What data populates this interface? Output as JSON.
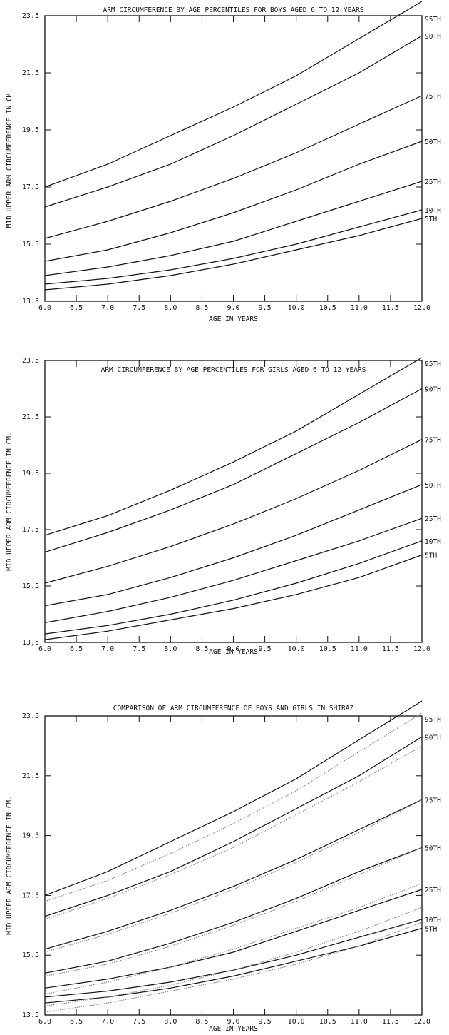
{
  "chart_data": [
    {
      "type": "line",
      "title": "ARM CIRCUMFERENCE BY AGE PERCENTILES FOR BOYS AGED 6 TO 12 YEARS",
      "xlabel": "AGE IN YEARS",
      "ylabel": "MID UPPER ARM CIRCUMFERENCE IN CM.",
      "xlim": [
        6.0,
        12.0
      ],
      "ylim": [
        13.5,
        23.5
      ],
      "x_ticks": [
        "6.0",
        "6.5",
        "7.0",
        "7.5",
        "8.0",
        "8.5",
        "9.0",
        "9.5",
        "10.0",
        "10.5",
        "11.0",
        "11.5",
        "12.0"
      ],
      "y_ticks": [
        "13.5",
        "15.5",
        "17.5",
        "19.5",
        "21.5",
        "23.5"
      ],
      "x": [
        6,
        7,
        8,
        9,
        10,
        11,
        12
      ],
      "series": [
        {
          "name": "95TH",
          "values": [
            17.5,
            18.3,
            19.3,
            20.3,
            21.4,
            22.7,
            24.0
          ]
        },
        {
          "name": "90TH",
          "values": [
            16.8,
            17.5,
            18.3,
            19.3,
            20.4,
            21.5,
            22.8
          ]
        },
        {
          "name": "75TH",
          "values": [
            15.7,
            16.3,
            17.0,
            17.8,
            18.7,
            19.7,
            20.7
          ]
        },
        {
          "name": "50TH",
          "values": [
            14.9,
            15.3,
            15.9,
            16.6,
            17.4,
            18.3,
            19.1
          ]
        },
        {
          "name": "25TH",
          "values": [
            14.4,
            14.7,
            15.1,
            15.6,
            16.3,
            17.0,
            17.7
          ]
        },
        {
          "name": "10TH",
          "values": [
            14.1,
            14.3,
            14.6,
            15.0,
            15.5,
            16.1,
            16.7
          ]
        },
        {
          "name": "5TH",
          "values": [
            13.9,
            14.1,
            14.4,
            14.8,
            15.3,
            15.8,
            16.4
          ]
        }
      ]
    },
    {
      "type": "line",
      "title": "ARM CIRCUMFERENCE BY AGE PERCENTILES FOR GIRLS AGED 6 TO 12 YEARS",
      "xlabel": "AGE IN YEARS",
      "ylabel": "MID UPPER ARM CIRCUMFERENCE IN CM.",
      "xlim": [
        6.0,
        12.0
      ],
      "ylim": [
        13.5,
        23.5
      ],
      "x_ticks": [
        "6.0",
        "6.5",
        "7.0",
        "7.5",
        "8.0",
        "8.5",
        "9.0",
        "9.5",
        "10.0",
        "10.5",
        "11.0",
        "11.5",
        "12.0"
      ],
      "y_ticks": [
        "13,5",
        "15.5",
        "17.5",
        "19.5",
        "21.5",
        "23.5"
      ],
      "x": [
        6,
        7,
        8,
        9,
        10,
        11,
        12
      ],
      "series": [
        {
          "name": "95TH",
          "values": [
            17.3,
            18.0,
            18.9,
            19.9,
            21.0,
            22.3,
            23.6
          ]
        },
        {
          "name": "90TH",
          "values": [
            16.7,
            17.4,
            18.2,
            19.1,
            20.2,
            21.3,
            22.5
          ]
        },
        {
          "name": "75TH",
          "values": [
            15.6,
            16.2,
            16.9,
            17.7,
            18.6,
            19.6,
            20.7
          ]
        },
        {
          "name": "50TH",
          "values": [
            14.8,
            15.2,
            15.8,
            16.5,
            17.3,
            18.2,
            19.1
          ]
        },
        {
          "name": "25TH",
          "values": [
            14.2,
            14.6,
            15.1,
            15.7,
            16.4,
            17.1,
            17.9
          ]
        },
        {
          "name": "10TH",
          "values": [
            13.8,
            14.1,
            14.5,
            15.0,
            15.6,
            16.3,
            17.1
          ]
        },
        {
          "name": "5TH",
          "values": [
            13.6,
            13.9,
            14.3,
            14.7,
            15.2,
            15.8,
            16.6
          ]
        }
      ]
    },
    {
      "type": "line",
      "title": "COMPARISON OF ARM CIRCUMFERENCE OF BOYS AND GIRLS IN SHIRAZ",
      "xlabel": "AGE IN YEARS",
      "ylabel": "MID UPPER ARM CIRCUMFERENCE IN CM.",
      "xlim": [
        6.0,
        12.0
      ],
      "ylim": [
        13.5,
        23.5
      ],
      "x_ticks": [
        "6.0",
        "6.5",
        "7.0",
        "7.5",
        "8.0",
        "8.5",
        "9.0",
        "9.5",
        "10.0",
        "10.5",
        "11.0",
        "11.5",
        "12.0"
      ],
      "y_ticks": [
        "13.5",
        "15.5",
        "17.5",
        "19.5",
        "21.5",
        "23.5"
      ],
      "x": [
        6,
        7,
        8,
        9,
        10,
        11,
        12
      ],
      "series": [
        {
          "name": "95TH",
          "group": "boys",
          "values": [
            17.5,
            18.3,
            19.3,
            20.3,
            21.4,
            22.7,
            24.0
          ]
        },
        {
          "name": "90TH",
          "group": "boys",
          "values": [
            16.8,
            17.5,
            18.3,
            19.3,
            20.4,
            21.5,
            22.8
          ]
        },
        {
          "name": "75TH",
          "group": "boys",
          "values": [
            15.7,
            16.3,
            17.0,
            17.8,
            18.7,
            19.7,
            20.7
          ]
        },
        {
          "name": "50TH",
          "group": "boys",
          "values": [
            14.9,
            15.3,
            15.9,
            16.6,
            17.4,
            18.3,
            19.1
          ]
        },
        {
          "name": "25TH",
          "group": "boys",
          "values": [
            14.4,
            14.7,
            15.1,
            15.6,
            16.3,
            17.0,
            17.7
          ]
        },
        {
          "name": "10TH",
          "group": "boys",
          "values": [
            14.1,
            14.3,
            14.6,
            15.0,
            15.5,
            16.1,
            16.7
          ]
        },
        {
          "name": "5TH",
          "group": "boys",
          "values": [
            13.9,
            14.1,
            14.4,
            14.8,
            15.3,
            15.8,
            16.4
          ]
        },
        {
          "name": "95TH",
          "group": "girls",
          "values": [
            17.3,
            18.0,
            18.9,
            19.9,
            21.0,
            22.3,
            23.6
          ]
        },
        {
          "name": "90TH",
          "group": "girls",
          "values": [
            16.7,
            17.4,
            18.2,
            19.1,
            20.2,
            21.3,
            22.5
          ]
        },
        {
          "name": "75TH",
          "group": "girls",
          "values": [
            15.6,
            16.2,
            16.9,
            17.7,
            18.6,
            19.6,
            20.7
          ]
        },
        {
          "name": "50TH",
          "group": "girls",
          "values": [
            14.8,
            15.2,
            15.8,
            16.5,
            17.3,
            18.2,
            19.1
          ]
        },
        {
          "name": "25TH",
          "group": "girls",
          "values": [
            14.2,
            14.6,
            15.1,
            15.7,
            16.4,
            17.1,
            17.9
          ]
        },
        {
          "name": "10TH",
          "group": "girls",
          "values": [
            13.8,
            14.1,
            14.5,
            15.0,
            15.6,
            16.3,
            17.1
          ]
        },
        {
          "name": "5TH",
          "group": "girls",
          "values": [
            13.6,
            13.9,
            14.3,
            14.7,
            15.2,
            15.8,
            16.6
          ]
        }
      ]
    }
  ]
}
